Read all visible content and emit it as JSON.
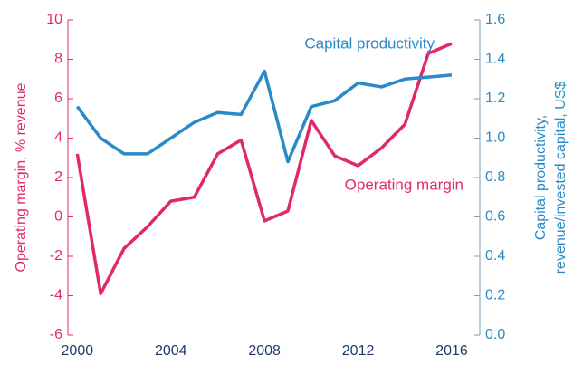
{
  "chart_data": {
    "type": "line",
    "x": [
      2000,
      2001,
      2002,
      2003,
      2004,
      2005,
      2006,
      2007,
      2008,
      2009,
      2010,
      2011,
      2012,
      2013,
      2014,
      2015,
      2016
    ],
    "series": [
      {
        "name": "Operating margin",
        "color": "#e0296d",
        "values": [
          3.2,
          -3.9,
          -1.6,
          -0.5,
          0.8,
          1.0,
          3.2,
          3.9,
          -0.2,
          0.3,
          4.9,
          3.1,
          2.6,
          3.5,
          4.7,
          8.3,
          8.8
        ]
      },
      {
        "name": "Capital productivity",
        "color": "#2a8ac6",
        "axis": "y2",
        "values": [
          1.16,
          1.0,
          0.92,
          0.92,
          1.0,
          1.08,
          1.13,
          1.12,
          1.34,
          0.88,
          1.16,
          1.19,
          1.28,
          1.26,
          1.3,
          1.31,
          1.32
        ]
      }
    ],
    "xlim": [
      1999.6,
      2017.2
    ],
    "xticks": [
      2000,
      2004,
      2008,
      2012,
      2016
    ],
    "ylim": [
      -6,
      10
    ],
    "yticks": [
      -6,
      -4,
      -2,
      0,
      2,
      4,
      6,
      8,
      10
    ],
    "y2lim": [
      0,
      1.6
    ],
    "y2ticks": [
      {
        "value": 0,
        "label": "0.0"
      },
      0.2,
      0.4,
      0.6,
      0.8,
      {
        "value": 1,
        "label": "1.0"
      },
      1.2,
      1.4,
      1.6
    ],
    "ylabel": "Operating margin, % revenue",
    "y2label": [
      "Capital productivity,",
      "revenue/invested capital, US$"
    ],
    "grid": false
  }
}
